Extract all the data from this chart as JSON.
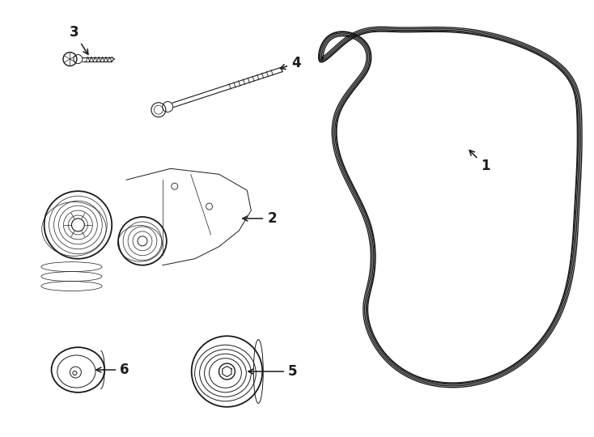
{
  "background_color": "#ffffff",
  "line_color": "#1a1a1a",
  "belt_color": "#1a1a1a",
  "label_fontsize": 12,
  "belt_line_offsets": [
    0.0,
    0.018,
    0.036,
    0.054
  ],
  "belt_lw": [
    1.4,
    1.0,
    1.0,
    1.0
  ],
  "fig_w": 7.34,
  "fig_h": 5.4
}
